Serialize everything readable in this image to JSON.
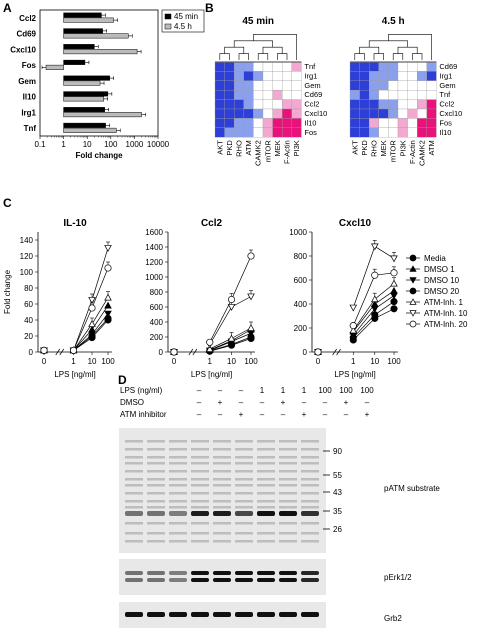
{
  "panels": {
    "A": "A",
    "B": "B",
    "C": "C",
    "D": "D"
  },
  "chart_data": [
    {
      "id": "A",
      "type": "bar",
      "orientation": "horizontal",
      "xscale": "log",
      "xlim": [
        0.1,
        10000
      ],
      "xticks": [
        "0.1",
        "1",
        "10",
        "100",
        "1000",
        "10000"
      ],
      "xlabel": "Fold change",
      "categories": [
        "Ccl2",
        "Cd69",
        "Cxcl10",
        "Fos",
        "Gem",
        "Il10",
        "Irg1",
        "Tnf"
      ],
      "series": [
        {
          "name": "45 min",
          "color": "#000000",
          "values": [
            40,
            45,
            20,
            8,
            90,
            75,
            55,
            60
          ]
        },
        {
          "name": "4.5 h",
          "color": "#bbbbbb",
          "values": [
            130,
            550,
            1300,
            0.18,
            35,
            50,
            2000,
            170
          ]
        }
      ],
      "legend": "top-right"
    },
    {
      "id": "B1",
      "type": "heatmap",
      "title": "45 min",
      "rows": [
        "Tnf",
        "Irg1",
        "Gem",
        "Cd69",
        "Ccl2",
        "Cxcl10",
        "Il10",
        "Fos"
      ],
      "cols": [
        "AKT",
        "PKD",
        "RHO",
        "ATM",
        "CAMK2",
        "mTOR",
        "MEK",
        "F-Actin",
        "PI3K"
      ],
      "values": [
        [
          -2,
          -2,
          -1,
          -1,
          0,
          0,
          0,
          0,
          1
        ],
        [
          -2,
          -2,
          -1,
          -2,
          -1,
          0,
          0,
          0,
          0
        ],
        [
          -2,
          -2,
          -1,
          -1,
          0,
          0,
          0,
          0,
          0
        ],
        [
          -2,
          -2,
          -1,
          -1,
          0,
          0,
          1,
          0,
          0
        ],
        [
          -2,
          -2,
          -2,
          -1,
          0,
          0,
          0,
          1,
          1
        ],
        [
          -2,
          -2,
          -2,
          -2,
          -1,
          0,
          1,
          2,
          1
        ],
        [
          -2,
          -2,
          -1,
          -1,
          0,
          1,
          2,
          2,
          2
        ],
        [
          -2,
          -1,
          -1,
          -1,
          0,
          1,
          2,
          2,
          2
        ]
      ]
    },
    {
      "id": "B2",
      "type": "heatmap",
      "title": "4.5 h",
      "rows": [
        "Cd69",
        "Irg1",
        "Gem",
        "Tnf",
        "Ccl2",
        "Cxcl10",
        "Fos",
        "Il10"
      ],
      "cols": [
        "AKT",
        "PKD",
        "RHO",
        "MEK",
        "mTOR",
        "PI3K",
        "F-Actin",
        "CAMK2",
        "ATM"
      ],
      "values": [
        [
          -2,
          -2,
          -2,
          -1,
          -1,
          0,
          0,
          0,
          -1
        ],
        [
          -2,
          -2,
          -1,
          -1,
          -1,
          0,
          0,
          -1,
          -2
        ],
        [
          -2,
          -2,
          -1,
          -1,
          0,
          0,
          0,
          0,
          0
        ],
        [
          -1,
          -2,
          -1,
          0,
          0,
          0,
          0,
          0,
          0
        ],
        [
          -2,
          -2,
          -2,
          -1,
          -1,
          0,
          0,
          1,
          2
        ],
        [
          -2,
          -2,
          -2,
          -2,
          -1,
          0,
          1,
          0,
          2
        ],
        [
          -2,
          -2,
          1,
          0,
          0,
          1,
          0,
          2,
          2
        ],
        [
          -2,
          -2,
          -1,
          0,
          0,
          1,
          0,
          2,
          2
        ]
      ]
    },
    {
      "id": "C1",
      "type": "line",
      "title": "IL-10",
      "ylabel": "Fold change",
      "xlabel": "LPS [ng/ml]",
      "x": [
        "0",
        "1",
        "10",
        "100"
      ],
      "ylim": [
        0,
        150
      ],
      "yticks": [
        0,
        20,
        40,
        60,
        80,
        100,
        120,
        140
      ],
      "series": [
        {
          "name": "Media",
          "values": [
            2,
            2,
            20,
            42
          ]
        },
        {
          "name": "DMSO 1",
          "values": [
            2,
            2,
            28,
            58
          ]
        },
        {
          "name": "DMSO 10",
          "values": [
            2,
            2,
            22,
            48
          ]
        },
        {
          "name": "DMSO 20",
          "values": [
            2,
            2,
            18,
            40
          ]
        },
        {
          "name": "ATM-Inh. 1",
          "values": [
            2,
            2,
            35,
            68
          ]
        },
        {
          "name": "ATM-Inh. 10",
          "values": [
            2,
            2,
            65,
            130
          ]
        },
        {
          "name": "ATM-Inh. 20",
          "values": [
            2,
            2,
            55,
            105
          ]
        }
      ]
    },
    {
      "id": "C2",
      "type": "line",
      "title": "Ccl2",
      "xlabel": "LPS [ng/ml]",
      "x": [
        "0",
        "1",
        "10",
        "100"
      ],
      "ylim": [
        0,
        1600
      ],
      "yticks": [
        0,
        200,
        400,
        600,
        800,
        1000,
        1200,
        1400,
        1600
      ],
      "series": [
        {
          "name": "Media",
          "values": [
            0,
            15,
            100,
            200
          ]
        },
        {
          "name": "DMSO 1",
          "values": [
            0,
            25,
            150,
            300
          ]
        },
        {
          "name": "DMSO 10",
          "values": [
            0,
            20,
            140,
            250
          ]
        },
        {
          "name": "DMSO 20",
          "values": [
            0,
            10,
            90,
            180
          ]
        },
        {
          "name": "ATM-Inh. 1",
          "values": [
            0,
            40,
            180,
            320
          ]
        },
        {
          "name": "ATM-Inh. 10",
          "values": [
            0,
            100,
            600,
            740
          ]
        },
        {
          "name": "ATM-Inh. 20",
          "values": [
            0,
            130,
            700,
            1280
          ]
        }
      ]
    },
    {
      "id": "C3",
      "type": "line",
      "title": "Cxcl10",
      "xlabel": "LPS [ng/ml]",
      "x": [
        "0",
        "1",
        "10",
        "100"
      ],
      "ylim": [
        0,
        1000
      ],
      "yticks": [
        0,
        200,
        400,
        600,
        800,
        1000
      ],
      "series": [
        {
          "name": "Media",
          "values": [
            0,
            120,
            310,
            420
          ]
        },
        {
          "name": "DMSO 1",
          "values": [
            0,
            170,
            400,
            510
          ]
        },
        {
          "name": "DMSO 10",
          "values": [
            0,
            140,
            360,
            470
          ]
        },
        {
          "name": "DMSO 20",
          "values": [
            0,
            100,
            280,
            360
          ]
        },
        {
          "name": "ATM-Inh. 1",
          "values": [
            0,
            180,
            440,
            570
          ]
        },
        {
          "name": "ATM-Inh. 10",
          "values": [
            0,
            370,
            880,
            780
          ]
        },
        {
          "name": "ATM-Inh. 20",
          "values": [
            0,
            220,
            640,
            660
          ]
        }
      ]
    }
  ],
  "legendC": {
    "items": [
      "Media",
      "DMSO 1",
      "DMSO 10",
      "DMSO 20",
      "ATM-Inh. 1",
      "ATM-Inh. 10",
      "ATM-Inh. 20"
    ],
    "markers": [
      "filled-circle",
      "filled-triangle-up",
      "filled-triangle-down",
      "filled-circle",
      "open-triangle-up",
      "open-triangle-down",
      "open-circle"
    ]
  },
  "blot": {
    "lps_label": "LPS (ng/ml)",
    "dmso_label": "DMSO",
    "atm_label": "ATM inhibitor",
    "lps": [
      "–",
      "–",
      "–",
      "1",
      "1",
      "1",
      "100",
      "100",
      "100"
    ],
    "dmso": [
      "–",
      "+",
      "–",
      "–",
      "+",
      "–",
      "–",
      "+",
      "–"
    ],
    "atm": [
      "–",
      "–",
      "+",
      "–",
      "–",
      "+",
      "–",
      "–",
      "+"
    ],
    "mw_markers": [
      "90",
      "55",
      "43",
      "35",
      "26"
    ],
    "panels": [
      "pATM substrate",
      "pErk1/2",
      "Grb2"
    ]
  },
  "colors": {
    "bar_dark": "#000000",
    "bar_light": "#bbbbbb",
    "heat_neg_strong": "#2e3fd8",
    "heat_neg": "#8aa0ec",
    "heat_zero": "#ffffff",
    "heat_pos": "#f2a8d0",
    "heat_pos_strong": "#e8127a",
    "blot_bg": "#e8e8e8"
  }
}
